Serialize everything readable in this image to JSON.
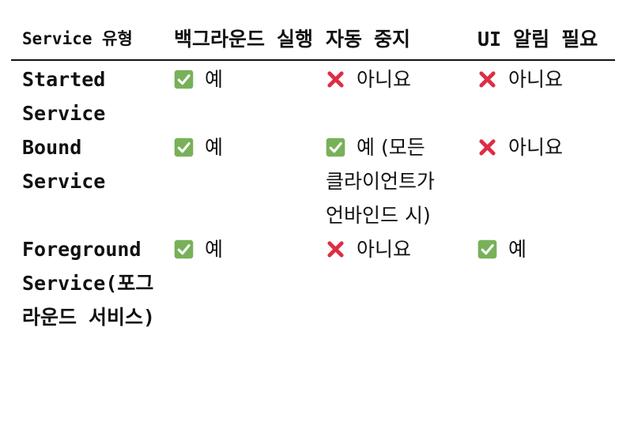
{
  "colors": {
    "check_bg": "#78b159",
    "cross": "#dd2e44",
    "text": "#111111",
    "rule": "#111111"
  },
  "table": {
    "headers": [
      "Service 유형",
      "백그라운드 실행",
      "자동 중지",
      "UI 알림 필요"
    ],
    "rows": [
      {
        "name": "Started Service",
        "cells": [
          {
            "icon": "check-mark-icon",
            "text": "예"
          },
          {
            "icon": "cross-mark-icon",
            "text": "아니요"
          },
          {
            "icon": "cross-mark-icon",
            "text": "아니요"
          }
        ]
      },
      {
        "name": "Bound Service",
        "cells": [
          {
            "icon": "check-mark-icon",
            "text": "예"
          },
          {
            "icon": "check-mark-icon",
            "text": "예 (모든 클라이언트가 언바인드 시)"
          },
          {
            "icon": "cross-mark-icon",
            "text": "아니요"
          }
        ]
      },
      {
        "name": "Foreground Service(포그라운드 서비스)",
        "cells": [
          {
            "icon": "check-mark-icon",
            "text": "예"
          },
          {
            "icon": "cross-mark-icon",
            "text": "아니요"
          },
          {
            "icon": "check-mark-icon",
            "text": "예"
          }
        ]
      }
    ]
  }
}
